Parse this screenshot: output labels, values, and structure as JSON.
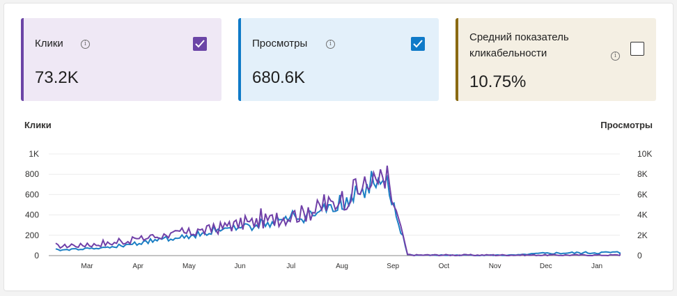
{
  "cards": {
    "clicks": {
      "label": "Клики",
      "value": "73.2K",
      "checked": true,
      "color": "#6b45a6"
    },
    "impressions": {
      "label": "Просмотры",
      "value": "680.6K",
      "checked": true,
      "color": "#0f7ac8"
    },
    "ctr": {
      "label_line1": "Средний показатель",
      "label_line2": "кликабельности",
      "value": "10.75%",
      "checked": false,
      "color": "#8a6a12"
    }
  },
  "info_icon": "info-icon",
  "chart": {
    "left_axis_title": "Клики",
    "right_axis_title": "Просмотры",
    "left_ticks": [
      "0",
      "200",
      "400",
      "600",
      "800",
      "1K"
    ],
    "right_ticks": [
      "0",
      "2K",
      "4K",
      "6K",
      "8K",
      "10K"
    ],
    "months": [
      "Mar",
      "Apr",
      "May",
      "Jun",
      "Jul",
      "Aug",
      "Sep",
      "Oct",
      "Nov",
      "Dec",
      "Jan"
    ]
  },
  "chart_data": {
    "type": "line",
    "x_range": [
      "Feb",
      "Jan"
    ],
    "x_tick_labels": [
      "Mar",
      "Apr",
      "May",
      "Jun",
      "Jul",
      "Aug",
      "Sep",
      "Oct",
      "Nov",
      "Dec",
      "Jan"
    ],
    "ylabel_left": "Клики",
    "ylabel_right": "Просмотры",
    "ylim_left": [
      0,
      1000
    ],
    "ylim_right": [
      0,
      10000
    ],
    "grid": true,
    "series": [
      {
        "name": "Клики",
        "color": "#7040a8",
        "axis": "left",
        "x_month_position": [
          0.0,
          0.5,
          1.0,
          1.5,
          2.0,
          2.5,
          3.0,
          3.5,
          4.0,
          4.5,
          5.0,
          5.5,
          6.0,
          6.15,
          6.4,
          6.6,
          6.9,
          7.0,
          8.0,
          9.0,
          10.0,
          11.0,
          11.5
        ],
        "values": [
          90,
          100,
          115,
          150,
          190,
          215,
          250,
          300,
          330,
          380,
          430,
          520,
          660,
          690,
          740,
          560,
          10,
          5,
          5,
          5,
          5,
          5,
          5
        ]
      },
      {
        "name": "Просмотры",
        "color": "#1b7fc4",
        "axis": "right",
        "x_month_position": [
          0.0,
          0.5,
          1.0,
          1.5,
          2.0,
          2.5,
          3.0,
          3.5,
          4.0,
          4.5,
          5.0,
          5.5,
          6.0,
          6.15,
          6.4,
          6.6,
          6.9,
          7.0,
          8.0,
          9.0,
          9.5,
          10.0,
          11.0,
          11.5
        ],
        "values": [
          520,
          650,
          750,
          1100,
          1500,
          1750,
          2200,
          2600,
          3000,
          3450,
          3900,
          4800,
          6200,
          6600,
          6900,
          5200,
          150,
          40,
          40,
          40,
          200,
          250,
          300,
          200
        ]
      }
    ]
  }
}
